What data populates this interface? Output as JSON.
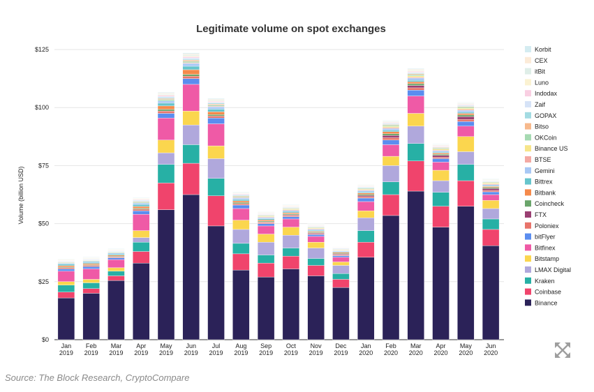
{
  "chart_data": {
    "type": "bar",
    "stacked": true,
    "title": "Legitimate volume on spot exchanges",
    "ylabel": "Volume (billion USD)",
    "xlabel": "",
    "ylim": [
      0,
      125
    ],
    "yticks": [
      "$0",
      "$25",
      "$50",
      "$75",
      "$100",
      "$125"
    ],
    "ytick_values": [
      0,
      25,
      50,
      75,
      100,
      125
    ],
    "grid": true,
    "legend_placement": "right",
    "categories": [
      [
        "Jan",
        "2019"
      ],
      [
        "Feb",
        "2019"
      ],
      [
        "Mar",
        "2019"
      ],
      [
        "Apr",
        "2019"
      ],
      [
        "May",
        "2019"
      ],
      [
        "Jun",
        "2019"
      ],
      [
        "Jul",
        "2019"
      ],
      [
        "Aug",
        "2019"
      ],
      [
        "Sep",
        "2019"
      ],
      [
        "Oct",
        "2019"
      ],
      [
        "Nov",
        "2019"
      ],
      [
        "Dec",
        "2019"
      ],
      [
        "Jan",
        "2020"
      ],
      [
        "Feb",
        "2020"
      ],
      [
        "Mar",
        "2020"
      ],
      [
        "Apr",
        "2020"
      ],
      [
        "May",
        "2020"
      ],
      [
        "Jun",
        "2020"
      ]
    ],
    "series": [
      {
        "name": "Binance",
        "color": "#2b2258",
        "values": [
          18,
          20,
          25.5,
          33,
          56,
          62.5,
          49,
          30,
          27,
          30.5,
          27.5,
          22.5,
          35.5,
          53.5,
          64,
          48.5,
          57.5,
          40.5
        ]
      },
      {
        "name": "Coinbase",
        "color": "#f0446c",
        "values": [
          2.5,
          2,
          2,
          5,
          11.5,
          13.5,
          13,
          7,
          6,
          5.5,
          4.5,
          3.5,
          6.5,
          9,
          13,
          9,
          11,
          7
        ]
      },
      {
        "name": "Kraken",
        "color": "#27b0a5",
        "values": [
          3,
          2.5,
          2,
          4,
          8,
          8,
          7.5,
          4.5,
          3.5,
          3.5,
          3,
          2.5,
          5,
          5.5,
          7.5,
          6,
          7,
          4.5
        ]
      },
      {
        "name": "LMAX Digital",
        "color": "#b0a8dc",
        "values": [
          0,
          0,
          0,
          2,
          5,
          8.5,
          8.5,
          6,
          5.5,
          5.5,
          4.5,
          3.5,
          5.5,
          7,
          7.5,
          5,
          5.5,
          4.5
        ]
      },
      {
        "name": "Bitstamp",
        "color": "#fbd64e",
        "values": [
          1.5,
          1.5,
          1.5,
          3,
          5.5,
          6,
          5.5,
          4,
          3.5,
          3.5,
          2.5,
          1.5,
          3,
          4,
          5.5,
          4.5,
          6.5,
          3.5
        ]
      },
      {
        "name": "Bitfinex",
        "color": "#ef5aa6",
        "values": [
          4.5,
          4.5,
          3.5,
          7,
          9.5,
          11.5,
          9.5,
          5,
          3.5,
          3.5,
          2.5,
          2,
          4,
          5,
          7.5,
          3.5,
          4.5,
          2.5
        ]
      },
      {
        "name": "bitFlyer",
        "color": "#5b8def",
        "values": [
          1,
          1,
          0.8,
          1.5,
          2,
          2.5,
          2.5,
          1.5,
          1,
          1,
          0.8,
          0.7,
          1.5,
          2,
          2.5,
          1.5,
          2,
          1.2
        ]
      },
      {
        "name": "Poloniex",
        "color": "#e8746b",
        "values": [
          0.5,
          0.5,
          0.4,
          0.7,
          1,
          1,
          0.9,
          0.6,
          0.5,
          0.5,
          0.4,
          0.4,
          0.6,
          1,
          1,
          0.6,
          0.9,
          0.6
        ]
      },
      {
        "name": "FTX",
        "color": "#9a3f72",
        "values": [
          0,
          0,
          0,
          0,
          0,
          0,
          0,
          0,
          0.2,
          0.3,
          0.3,
          0.3,
          0.5,
          1,
          1,
          0.8,
          1.2,
          0.8
        ]
      },
      {
        "name": "Coincheck",
        "color": "#6aa56b",
        "values": [
          0.3,
          0.3,
          0.3,
          0.4,
          0.7,
          0.8,
          0.6,
          0.5,
          0.4,
          0.4,
          0.3,
          0.3,
          0.5,
          0.7,
          0.8,
          0.5,
          0.7,
          0.5
        ]
      },
      {
        "name": "Bitbank",
        "color": "#f58a4b",
        "values": [
          0.6,
          0.5,
          0.4,
          0.8,
          1.5,
          2,
          1.2,
          0.7,
          0.5,
          0.5,
          0.4,
          0.4,
          0.6,
          0.9,
          0.8,
          0.5,
          0.7,
          0.4
        ]
      },
      {
        "name": "Bittrex",
        "color": "#66c5cc",
        "values": [
          0.6,
          0.5,
          0.5,
          0.8,
          1.2,
          1.5,
          1.1,
          0.6,
          0.5,
          0.5,
          0.4,
          0.3,
          0.4,
          0.6,
          0.6,
          0.4,
          0.5,
          0.3
        ]
      },
      {
        "name": "Gemini",
        "color": "#a8c8f5",
        "values": [
          0.4,
          0.4,
          0.4,
          0.6,
          1,
          1.2,
          1,
          0.6,
          0.5,
          0.5,
          0.4,
          0.3,
          0.6,
          0.8,
          1,
          0.6,
          0.8,
          0.5
        ]
      },
      {
        "name": "BTSE",
        "color": "#f4a9a3",
        "values": [
          0,
          0,
          0,
          0,
          0,
          0.3,
          0.3,
          0.3,
          0.3,
          0.3,
          0.3,
          0.2,
          0.3,
          0.4,
          0.4,
          0.3,
          0.4,
          0.3
        ]
      },
      {
        "name": "Binance US",
        "color": "#f7e58a",
        "values": [
          0,
          0,
          0,
          0,
          0,
          0,
          0,
          0,
          0.3,
          0.3,
          0.3,
          0.2,
          0.3,
          0.5,
          0.6,
          0.4,
          0.5,
          0.4
        ]
      },
      {
        "name": "OKCoin",
        "color": "#a6dab2",
        "values": [
          0.3,
          0.3,
          0.3,
          0.4,
          0.6,
          0.6,
          0.5,
          0.4,
          0.3,
          0.3,
          0.3,
          0.2,
          0.3,
          0.5,
          0.5,
          0.4,
          0.5,
          0.3
        ]
      },
      {
        "name": "Bitso",
        "color": "#f7b98c",
        "values": [
          0.2,
          0.2,
          0.2,
          0.3,
          0.4,
          0.5,
          0.4,
          0.3,
          0.2,
          0.2,
          0.2,
          0.2,
          0.2,
          0.3,
          0.4,
          0.3,
          0.3,
          0.2
        ]
      },
      {
        "name": "GOPAX",
        "color": "#a3dbe2",
        "values": [
          0.2,
          0.2,
          0.2,
          0.3,
          0.4,
          0.4,
          0.4,
          0.3,
          0.2,
          0.2,
          0.2,
          0.2,
          0.3,
          0.3,
          0.3,
          0.2,
          0.3,
          0.2
        ]
      },
      {
        "name": "Zaif",
        "color": "#d6e3f7",
        "values": [
          0.2,
          0.2,
          0.2,
          0.3,
          0.5,
          0.6,
          0.4,
          0.3,
          0.2,
          0.2,
          0.2,
          0.2,
          0.2,
          0.3,
          0.3,
          0.2,
          0.3,
          0.2
        ]
      },
      {
        "name": "Indodax",
        "color": "#f9cfe2",
        "values": [
          0.2,
          0.2,
          0.2,
          0.3,
          0.5,
          0.5,
          0.4,
          0.3,
          0.2,
          0.2,
          0.2,
          0.2,
          0.2,
          0.3,
          0.4,
          0.3,
          0.3,
          0.2
        ]
      },
      {
        "name": "Luno",
        "color": "#fbf2d2",
        "values": [
          0.2,
          0.2,
          0.2,
          0.2,
          0.3,
          0.4,
          0.3,
          0.2,
          0.2,
          0.2,
          0.2,
          0.1,
          0.2,
          0.2,
          0.3,
          0.2,
          0.2,
          0.2
        ]
      },
      {
        "name": "itBit",
        "color": "#dfeee8",
        "values": [
          0.2,
          0.2,
          0.2,
          0.2,
          0.4,
          0.5,
          0.4,
          0.2,
          0.2,
          0.2,
          0.2,
          0.1,
          0.2,
          0.3,
          0.3,
          0.2,
          0.3,
          0.2
        ]
      },
      {
        "name": "CEX",
        "color": "#fcebd8",
        "values": [
          0.2,
          0.2,
          0.2,
          0.2,
          0.3,
          0.4,
          0.3,
          0.2,
          0.2,
          0.2,
          0.2,
          0.1,
          0.2,
          0.2,
          0.3,
          0.2,
          0.2,
          0.2
        ]
      },
      {
        "name": "Korbit",
        "color": "#d4ecf1",
        "values": [
          0.2,
          0.2,
          0.2,
          0.2,
          0.3,
          0.4,
          0.3,
          0.2,
          0.2,
          0.2,
          0.2,
          0.1,
          0.2,
          0.2,
          0.3,
          0.2,
          0.2,
          0.2
        ]
      }
    ]
  },
  "source_note": "Source: The Block Research, CryptoCompare",
  "expand_icon": "expand-arrows-icon",
  "colors": {
    "grid": "#e6e6e6",
    "axis": "#333333",
    "background": "#ffffff"
  }
}
